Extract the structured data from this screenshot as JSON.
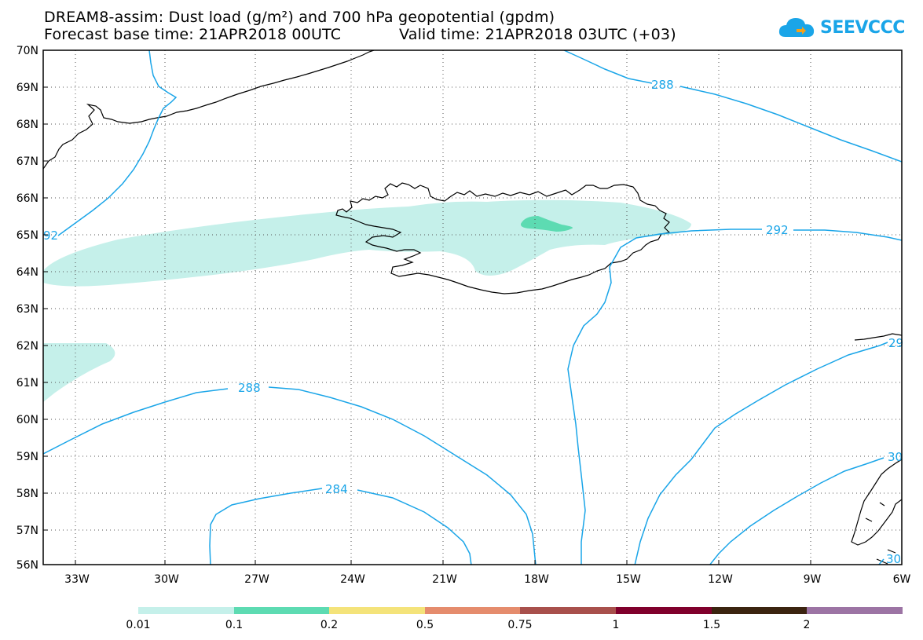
{
  "title": {
    "line1": "DREAM8-assim: Dust load (g/m²) and 700 hPa geopotential (gpdm)",
    "line2_base": "Forecast base time: 21APR2018 00UTC",
    "line2_valid": "Valid time: 21APR2018 03UTC (+03)"
  },
  "logo": {
    "text": "SEEVCCC",
    "icon": "cloud-icon"
  },
  "map": {
    "lon_range": [
      -34.5,
      -6
    ],
    "lat_range": [
      56,
      70
    ],
    "lat_labels": [
      "70N",
      "69N",
      "68N",
      "67N",
      "66N",
      "65N",
      "64N",
      "63N",
      "62N",
      "61N",
      "60N",
      "59N",
      "58N",
      "57N",
      "56N"
    ],
    "lon_labels": [
      "33W",
      "30W",
      "27W",
      "24W",
      "21W",
      "18W",
      "15W",
      "12W",
      "9W",
      "6W"
    ],
    "contour_labels": [
      "288",
      "292",
      "29",
      "288",
      "284",
      "30",
      "30",
      "92"
    ],
    "grid": "dotted"
  },
  "colors": {
    "contour": "#1aa5e8",
    "dust_low": "#c5f0ea",
    "dust_mid": "#5ddbb2",
    "coast": "#000000"
  },
  "legend": {
    "labels": [
      "0.01",
      "0.1",
      "0.2",
      "0.5",
      "0.75",
      "1",
      "1.5",
      "2"
    ],
    "colors": [
      "#c5f0ea",
      "#5ddbb2",
      "#f4e37a",
      "#e58c6d",
      "#a8504c",
      "#80002c",
      "#3b2410",
      "#9c74a4"
    ]
  }
}
